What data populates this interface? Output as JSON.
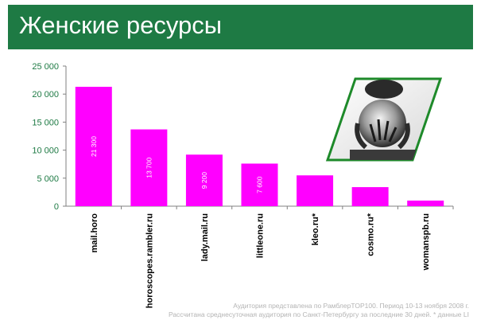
{
  "header": {
    "title": "Женские ресурсы"
  },
  "colors": {
    "header_bg": "#1e7a44",
    "bar": "#ff00ff",
    "axis_text": "#1e7a44",
    "frame": "#1e8a2a"
  },
  "photo": {
    "icon": "crystal-ball-hands-photo"
  },
  "footnote": {
    "line1": "Аудитория представлена по РамблерTOP100. Период 10-13 ноября 2008 г.",
    "line2": "Рассчитана среднесуточная аудитория по Санкт-Петербургу за последние 30 дней. * данные LI"
  },
  "chart_data": {
    "type": "bar",
    "categories": [
      "mail.horo",
      "horoscopes.rambler.ru",
      "lady.mail.ru",
      "littleone.ru",
      "kleo.ru*",
      "cosmo.ru*",
      "womanspb.ru"
    ],
    "values": [
      21300,
      13700,
      9200,
      7600,
      5500,
      3400,
      1000
    ],
    "data_labels": [
      "21 300",
      "13 700",
      "9 200",
      "7 600",
      null,
      null,
      null
    ],
    "yticks": [
      0,
      5000,
      10000,
      15000,
      20000,
      25000
    ],
    "ytick_labels": [
      "0",
      "5 000",
      "10 000",
      "15 000",
      "20 000",
      "25 000"
    ],
    "ylim": [
      0,
      25000
    ],
    "title": "",
    "xlabel": "",
    "ylabel": "",
    "grid": false,
    "legend": "none"
  }
}
